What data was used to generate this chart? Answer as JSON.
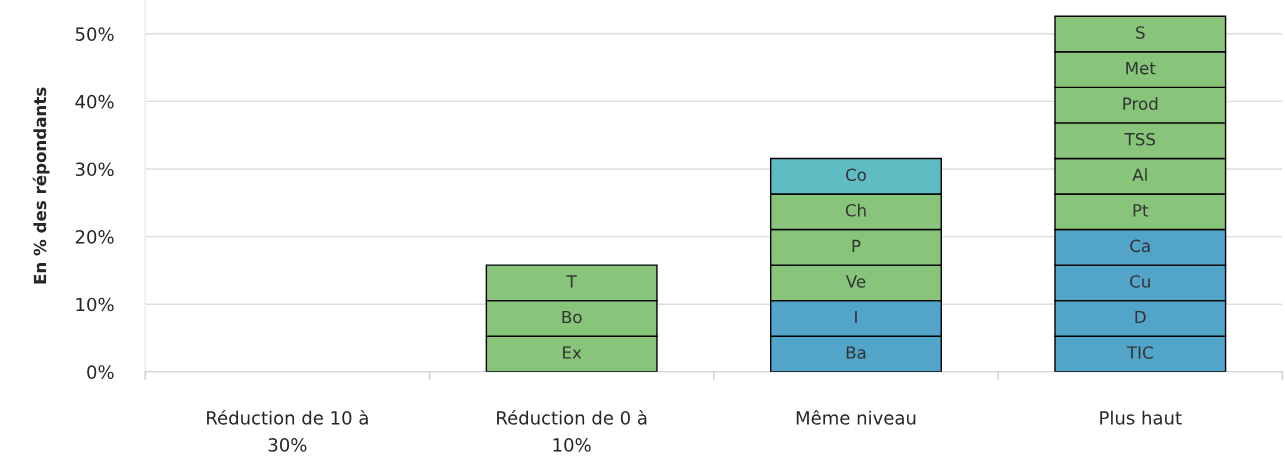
{
  "chart_data": {
    "type": "bar",
    "stacked": true,
    "ylabel": "En % des répondants",
    "categories": [
      "Réduction de 10 à 30%",
      "Réduction de 0 à 10%",
      "Même niveau",
      "Plus haut"
    ],
    "ylim": [
      0,
      55
    ],
    "yticks": [
      {
        "value": 0,
        "label": "0%"
      },
      {
        "value": 10,
        "label": "10%"
      },
      {
        "value": 20,
        "label": "20%"
      },
      {
        "value": 30,
        "label": "30%"
      },
      {
        "value": 40,
        "label": "40%"
      },
      {
        "value": 50,
        "label": "50%"
      }
    ],
    "grid": "y",
    "legend": false,
    "series": [
      {
        "name": "Ex",
        "color": "#88c47a",
        "values": [
          null,
          5.26,
          null,
          null
        ]
      },
      {
        "name": "Bo",
        "color": "#88c47a",
        "values": [
          null,
          5.26,
          null,
          null
        ]
      },
      {
        "name": "T",
        "color": "#88c47a",
        "values": [
          null,
          5.26,
          null,
          null
        ]
      },
      {
        "name": "Ba",
        "color": "#52a4c9",
        "values": [
          null,
          null,
          5.26,
          null
        ]
      },
      {
        "name": "I",
        "color": "#52a4c9",
        "values": [
          null,
          null,
          5.26,
          null
        ]
      },
      {
        "name": "Ve",
        "color": "#88c47a",
        "values": [
          null,
          null,
          5.26,
          null
        ]
      },
      {
        "name": "P",
        "color": "#88c47a",
        "values": [
          null,
          null,
          5.26,
          null
        ]
      },
      {
        "name": "Ch",
        "color": "#88c47a",
        "values": [
          null,
          null,
          5.26,
          null
        ]
      },
      {
        "name": "Co",
        "color": "#5fbcc3",
        "values": [
          null,
          null,
          5.26,
          null
        ]
      },
      {
        "name": "TIC",
        "color": "#52a4c9",
        "values": [
          null,
          null,
          null,
          5.26
        ]
      },
      {
        "name": "D",
        "color": "#52a4c9",
        "values": [
          null,
          null,
          null,
          5.26
        ]
      },
      {
        "name": "Cu",
        "color": "#52a4c9",
        "values": [
          null,
          null,
          null,
          5.26
        ]
      },
      {
        "name": "Ca",
        "color": "#52a4c9",
        "values": [
          null,
          null,
          null,
          5.26
        ]
      },
      {
        "name": "Pt",
        "color": "#88c47a",
        "values": [
          null,
          null,
          null,
          5.26
        ]
      },
      {
        "name": "Al",
        "color": "#88c47a",
        "values": [
          null,
          null,
          null,
          5.26
        ]
      },
      {
        "name": "TSS",
        "color": "#88c47a",
        "values": [
          null,
          null,
          null,
          5.26
        ]
      },
      {
        "name": "Prod",
        "color": "#88c47a",
        "values": [
          null,
          null,
          null,
          5.26
        ]
      },
      {
        "name": "Met",
        "color": "#88c47a",
        "values": [
          null,
          null,
          null,
          5.26
        ]
      },
      {
        "name": "S",
        "color": "#88c47a",
        "values": [
          null,
          null,
          null,
          5.26
        ]
      }
    ]
  }
}
